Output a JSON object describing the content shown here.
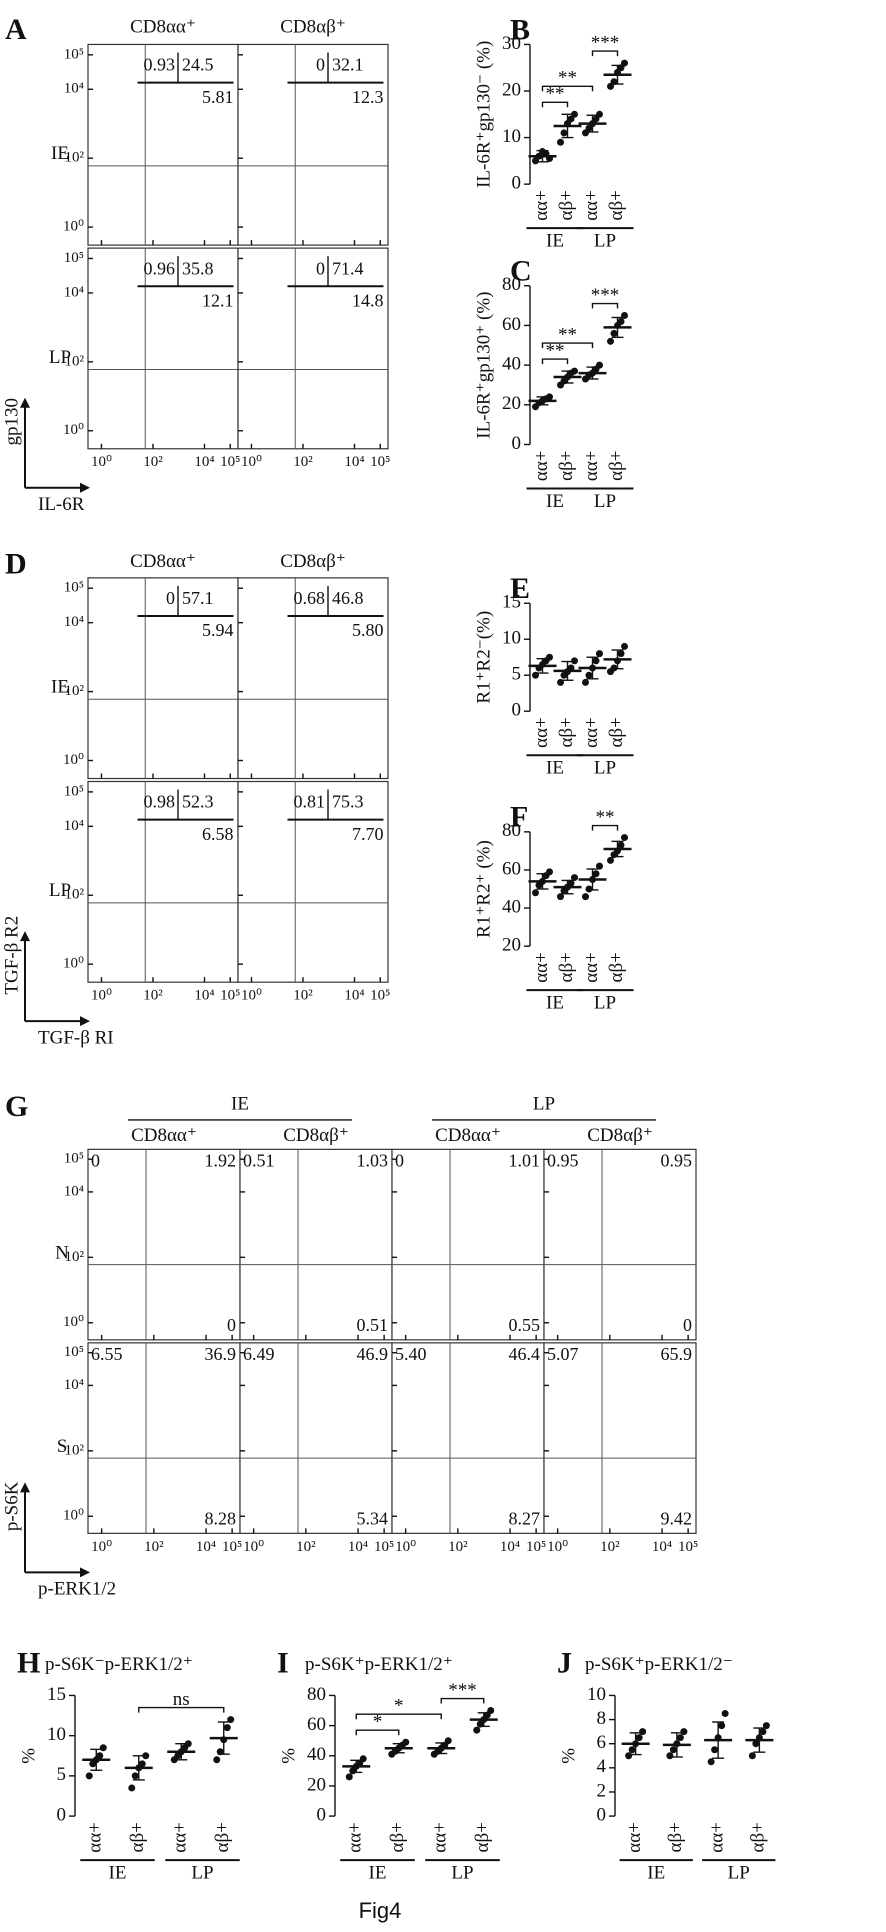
{
  "caption": "Fig4",
  "chart_data": [
    {
      "type": "flow",
      "panel": "A",
      "columns": [
        "CD8αα⁺",
        "CD8αβ⁺"
      ],
      "rows": [
        "IE",
        "LP"
      ],
      "xlabel": "IL-6R",
      "ylabel": "gp130",
      "log": true,
      "xlim": [
        0.3,
        200000
      ],
      "ylim": [
        0.3,
        200000
      ],
      "xticks": [
        {
          "value": 1,
          "label": "10⁰"
        },
        {
          "value": 100,
          "label": "10²"
        },
        {
          "value": 10000,
          "label": "10⁴"
        },
        {
          "value": 100000,
          "label": "10⁵"
        }
      ],
      "yticks": [
        {
          "value": 1,
          "label": "10⁰"
        },
        {
          "value": 100,
          "label": "10²"
        },
        {
          "value": 10000,
          "label": "10⁴"
        },
        {
          "value": 100000,
          "label": "10⁵"
        }
      ],
      "gate": [
        50,
        60
      ],
      "quadrant_style": "inset",
      "plots": [
        [
          {
            "values": [
              0.93,
              24.5,
              5.81
            ]
          },
          {
            "values": [
              0,
              32.1,
              12.3
            ]
          }
        ],
        [
          {
            "values": [
              0.96,
              35.8,
              12.1
            ]
          },
          {
            "values": [
              0,
              71.4,
              14.8
            ]
          }
        ]
      ]
    },
    {
      "type": "dot",
      "panel": "B",
      "ylabel": "IL-6R⁺gp130⁻ (%)",
      "categories": [
        "αα+",
        "αβ+",
        "αα+",
        "αβ+"
      ],
      "groups": [
        "IE",
        "LP"
      ],
      "ylim": [
        0,
        30
      ],
      "yticks": [
        0,
        10,
        20,
        30
      ],
      "points": [
        [
          5,
          6,
          7,
          6.5,
          5.5
        ],
        [
          9,
          11,
          13,
          14,
          15
        ],
        [
          11,
          12,
          13,
          14,
          15
        ],
        [
          21,
          22,
          24,
          25,
          26
        ]
      ],
      "means": [
        6,
        12.5,
        13,
        23.5
      ],
      "sds": [
        1.2,
        2.5,
        1.8,
        2
      ],
      "significance": [
        {
          "from": 0,
          "to": 1,
          "label": "**"
        },
        {
          "from": 0,
          "to": 2,
          "label": "**"
        },
        {
          "from": 2,
          "to": 3,
          "label": "***"
        }
      ]
    },
    {
      "type": "dot",
      "panel": "C",
      "ylabel": "IL-6R⁺gp130⁺ (%)",
      "categories": [
        "αα+",
        "αβ+",
        "αα+",
        "αβ+"
      ],
      "groups": [
        "IE",
        "LP"
      ],
      "ylim": [
        0,
        80
      ],
      "yticks": [
        0,
        20,
        40,
        60,
        80
      ],
      "points": [
        [
          19,
          21,
          22,
          23,
          24
        ],
        [
          30,
          32,
          34,
          36,
          37
        ],
        [
          33,
          35,
          36,
          38,
          40
        ],
        [
          52,
          56,
          60,
          62,
          65
        ]
      ],
      "means": [
        22,
        34,
        36,
        59
      ],
      "sds": [
        2,
        3,
        3,
        5
      ],
      "significance": [
        {
          "from": 0,
          "to": 1,
          "label": "**"
        },
        {
          "from": 0,
          "to": 2,
          "label": "**"
        },
        {
          "from": 2,
          "to": 3,
          "label": "***"
        }
      ]
    },
    {
      "type": "flow",
      "panel": "D",
      "columns": [
        "CD8αα⁺",
        "CD8αβ⁺"
      ],
      "rows": [
        "IE",
        "LP"
      ],
      "xlabel": "TGF-β RI",
      "ylabel": "TGF-β R2",
      "log": true,
      "xlim": [
        0.3,
        200000
      ],
      "ylim": [
        0.3,
        200000
      ],
      "xticks": [
        {
          "value": 1,
          "label": "10⁰"
        },
        {
          "value": 100,
          "label": "10²"
        },
        {
          "value": 10000,
          "label": "10⁴"
        },
        {
          "value": 100000,
          "label": "10⁵"
        }
      ],
      "yticks": [
        {
          "value": 1,
          "label": "10⁰"
        },
        {
          "value": 100,
          "label": "10²"
        },
        {
          "value": 10000,
          "label": "10⁴"
        },
        {
          "value": 100000,
          "label": "10⁵"
        }
      ],
      "gate": [
        50,
        60
      ],
      "quadrant_style": "inset",
      "plots": [
        [
          {
            "values": [
              0,
              57.1,
              5.94
            ]
          },
          {
            "values": [
              0.68,
              46.8,
              5.8
            ],
            "value_labels": [
              "0.68",
              "46.8",
              "5.80"
            ]
          }
        ],
        [
          {
            "values": [
              0.98,
              52.3,
              6.58
            ]
          },
          {
            "values": [
              0.81,
              75.3,
              7.7
            ],
            "value_labels": [
              "0.81",
              "75.3",
              "7.70"
            ]
          }
        ]
      ]
    },
    {
      "type": "dot",
      "panel": "E",
      "ylabel": "R1⁺R2⁻(%)",
      "categories": [
        "αα+",
        "αβ+",
        "αα+",
        "αβ+"
      ],
      "groups": [
        "IE",
        "LP"
      ],
      "ylim": [
        0,
        15
      ],
      "yticks": [
        0,
        5,
        10,
        15
      ],
      "points": [
        [
          5,
          6,
          6.5,
          7,
          7.5
        ],
        [
          4,
          5,
          5.5,
          6,
          7
        ],
        [
          4,
          5,
          6,
          7,
          8
        ],
        [
          5.5,
          6,
          7,
          8,
          9
        ]
      ],
      "means": [
        6.3,
        5.6,
        6,
        7.2
      ],
      "sds": [
        1,
        1.3,
        1.5,
        1.3
      ],
      "significance": []
    },
    {
      "type": "dot",
      "panel": "F",
      "ylabel": "R1⁺R2⁺ (%)",
      "categories": [
        "αα+",
        "αβ+",
        "αα+",
        "αβ+"
      ],
      "groups": [
        "IE",
        "LP"
      ],
      "ylim": [
        20,
        80
      ],
      "yticks": [
        20,
        40,
        60,
        80
      ],
      "points": [
        [
          48,
          52,
          54,
          57,
          59
        ],
        [
          46,
          49,
          51,
          53,
          56
        ],
        [
          46,
          50,
          55,
          58,
          62
        ],
        [
          65,
          68,
          70,
          73,
          77
        ]
      ],
      "means": [
        54,
        51,
        55,
        71
      ],
      "sds": [
        4,
        3.5,
        5.5,
        4
      ],
      "significance": [
        {
          "from": 2,
          "to": 3,
          "label": "**"
        }
      ]
    },
    {
      "type": "flow",
      "panel": "G",
      "column_groups": [
        "IE",
        "LP"
      ],
      "columns": [
        "CD8αα⁺",
        "CD8αβ⁺",
        "CD8αα⁺",
        "CD8αβ⁺"
      ],
      "rows": [
        "N",
        "S"
      ],
      "xlabel": "p-ERK1/2",
      "ylabel": "p-S6K",
      "log": true,
      "xlim": [
        0.3,
        200000
      ],
      "ylim": [
        0.3,
        200000
      ],
      "xticks": [
        {
          "value": 1,
          "label": "10⁰"
        },
        {
          "value": 100,
          "label": "10²"
        },
        {
          "value": 10000,
          "label": "10⁴"
        },
        {
          "value": 100000,
          "label": "10⁵"
        }
      ],
      "yticks": [
        {
          "value": 1,
          "label": "10⁰"
        },
        {
          "value": 100,
          "label": "10²"
        },
        {
          "value": 10000,
          "label": "10⁴"
        },
        {
          "value": 100000,
          "label": "10⁵"
        }
      ],
      "gate": [
        50,
        60
      ],
      "quadrant_style": "corner",
      "plots": [
        [
          {
            "values": [
              0,
              1.92,
              0
            ]
          },
          {
            "values": [
              0.51,
              1.03,
              0.51
            ]
          },
          {
            "values": [
              0,
              1.01,
              0.55
            ]
          },
          {
            "values": [
              0.95,
              0.95,
              0
            ]
          }
        ],
        [
          {
            "values": [
              6.55,
              36.9,
              8.28
            ]
          },
          {
            "values": [
              6.49,
              46.9,
              5.34
            ]
          },
          {
            "values": [
              5.4,
              46.4,
              8.27
            ],
            "value_labels": [
              "5.40",
              "46.4",
              "8.27"
            ]
          },
          {
            "values": [
              5.07,
              65.9,
              9.42
            ]
          }
        ]
      ]
    },
    {
      "type": "dot",
      "panel": "H",
      "title": "p-S6K⁻p-ERK1/2⁺",
      "ylabel": "%",
      "categories": [
        "αα+",
        "αβ+",
        "αα+",
        "αβ+"
      ],
      "groups": [
        "IE",
        "LP"
      ],
      "ylim": [
        0,
        15
      ],
      "yticks": [
        0,
        5,
        10,
        15
      ],
      "points": [
        [
          5,
          6.5,
          7,
          7.5,
          8.5
        ],
        [
          3.5,
          5,
          6,
          6.5,
          7.5
        ],
        [
          7,
          7.5,
          8,
          8.5,
          9
        ],
        [
          7,
          8,
          9.5,
          11,
          12
        ]
      ],
      "means": [
        7,
        6,
        8,
        9.7
      ],
      "sds": [
        1.3,
        1.5,
        1,
        2
      ],
      "significance": [
        {
          "from": 1,
          "to": 3,
          "label": "ns"
        }
      ]
    },
    {
      "type": "dot",
      "panel": "I",
      "title": "p-S6K⁺p-ERK1/2⁺",
      "ylabel": "%",
      "categories": [
        "αα+",
        "αβ+",
        "αα+",
        "αβ+"
      ],
      "groups": [
        "IE",
        "LP"
      ],
      "ylim": [
        0,
        80
      ],
      "yticks": [
        0,
        20,
        40,
        60,
        80
      ],
      "points": [
        [
          26,
          30,
          33,
          35,
          38
        ],
        [
          41,
          43,
          45,
          47,
          49
        ],
        [
          41,
          43,
          45,
          47,
          50
        ],
        [
          57,
          61,
          64,
          67,
          70
        ]
      ],
      "means": [
        33,
        45,
        45,
        64
      ],
      "sds": [
        4,
        3,
        3.5,
        4.5
      ],
      "significance": [
        {
          "from": 0,
          "to": 1,
          "label": "*"
        },
        {
          "from": 0,
          "to": 2,
          "label": "*"
        },
        {
          "from": 2,
          "to": 3,
          "label": "***"
        }
      ]
    },
    {
      "type": "dot",
      "panel": "J",
      "title": "p-S6K⁺p-ERK1/2⁻",
      "ylabel": "%",
      "categories": [
        "αα+",
        "αβ+",
        "αα+",
        "αβ+"
      ],
      "groups": [
        "IE",
        "LP"
      ],
      "ylim": [
        0,
        10
      ],
      "yticks": [
        0,
        2,
        4,
        6,
        8,
        10
      ],
      "points": [
        [
          5,
          5.5,
          6,
          6.5,
          7
        ],
        [
          5,
          5.5,
          6,
          6.5,
          7
        ],
        [
          4.5,
          5.5,
          6.5,
          7.5,
          8.5
        ],
        [
          5,
          6,
          6.5,
          7,
          7.5
        ]
      ],
      "means": [
        6,
        5.9,
        6.3,
        6.3
      ],
      "sds": [
        0.9,
        1,
        1.5,
        1
      ],
      "significance": []
    }
  ]
}
